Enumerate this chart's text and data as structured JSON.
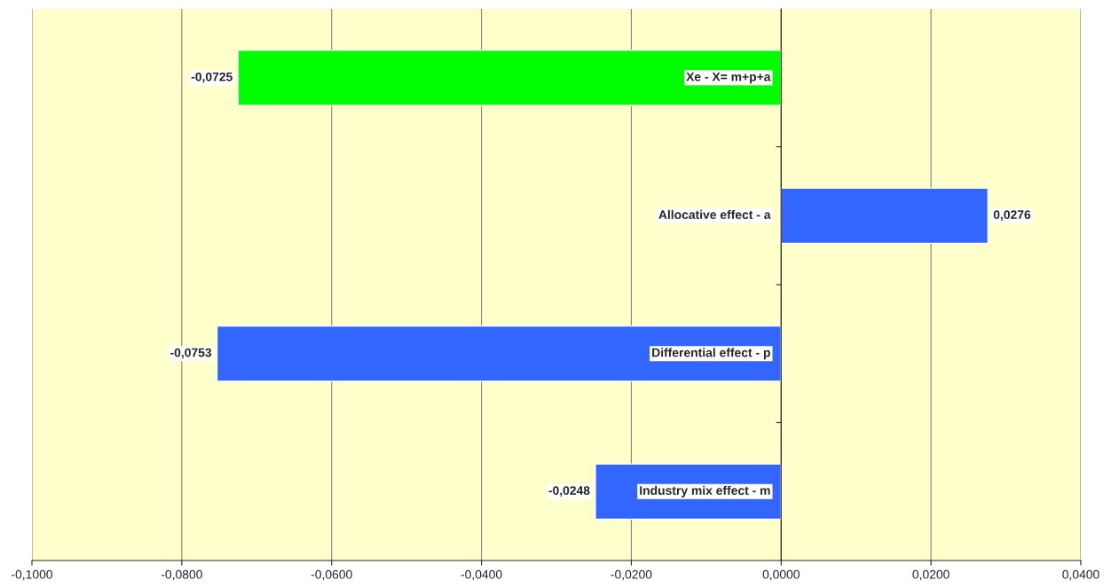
{
  "chart_data": {
    "type": "bar",
    "orientation": "horizontal",
    "categories": [
      "Xe - X= m+p+a",
      "Allocative effect - a",
      "Differential effect - p",
      "Industry mix effect - m"
    ],
    "values": [
      -0.0725,
      0.0276,
      -0.0753,
      -0.0248
    ],
    "colors": [
      "#00ff00",
      "#3366ff",
      "#3366ff",
      "#3366ff"
    ],
    "value_labels": [
      "-0,0725",
      "0,0276",
      "-0,0753",
      "-0,0248"
    ],
    "xlim": [
      -0.1,
      0.04
    ],
    "xticks": [
      {
        "value": -0.1,
        "label": "-0,1000"
      },
      {
        "value": -0.08,
        "label": "-0,0800"
      },
      {
        "value": -0.06,
        "label": "-0,0600"
      },
      {
        "value": -0.04,
        "label": "-0,0400"
      },
      {
        "value": -0.02,
        "label": "-0,0200"
      },
      {
        "value": 0,
        "label": "0,0000"
      },
      {
        "value": 0.02,
        "label": "0,0200"
      },
      {
        "value": 0.04,
        "label": "0,0400"
      }
    ],
    "grid": "x",
    "legend": false
  }
}
